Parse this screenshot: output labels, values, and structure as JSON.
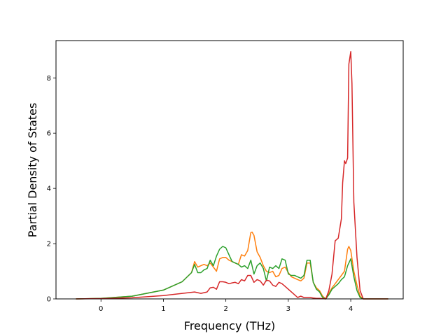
{
  "chart_data": {
    "type": "line",
    "title": "",
    "xlabel": "Frequency (THz)",
    "ylabel": "Partial Density of States",
    "xlim": [
      -0.72,
      4.84
    ],
    "ylim": [
      0,
      9.35
    ],
    "xticks": [
      0,
      1,
      2,
      3,
      4
    ],
    "yticks": [
      0,
      2,
      4,
      6,
      8
    ],
    "grid": false,
    "legend": "none",
    "series": [
      {
        "color": "#ff7f0e",
        "x": [
          -0.4,
          0,
          0.5,
          1.0,
          1.3,
          1.45,
          1.5,
          1.55,
          1.6,
          1.65,
          1.7,
          1.75,
          1.8,
          1.85,
          1.9,
          1.95,
          2.0,
          2.05,
          2.1,
          2.15,
          2.2,
          2.25,
          2.3,
          2.35,
          2.4,
          2.42,
          2.45,
          2.5,
          2.55,
          2.6,
          2.65,
          2.7,
          2.75,
          2.8,
          2.85,
          2.9,
          2.95,
          3.0,
          3.05,
          3.1,
          3.15,
          3.2,
          3.25,
          3.3,
          3.35,
          3.4,
          3.45,
          3.5,
          3.55,
          3.6,
          3.65,
          3.7,
          3.75,
          3.8,
          3.85,
          3.9,
          3.95,
          3.97,
          4.0,
          4.05,
          4.1,
          4.15,
          4.2,
          4.6
        ],
        "y": [
          0,
          0.02,
          0.1,
          0.32,
          0.62,
          0.95,
          1.35,
          1.15,
          1.2,
          1.25,
          1.2,
          1.3,
          1.15,
          1.0,
          1.45,
          1.5,
          1.5,
          1.4,
          1.35,
          1.3,
          1.25,
          1.6,
          1.55,
          1.75,
          2.4,
          2.42,
          2.3,
          1.7,
          1.5,
          1.2,
          1.0,
          0.95,
          1.0,
          0.8,
          0.85,
          1.1,
          1.15,
          0.95,
          0.8,
          0.75,
          0.7,
          0.65,
          0.75,
          1.3,
          1.3,
          0.6,
          0.4,
          0.3,
          0.1,
          0,
          0.2,
          0.4,
          0.55,
          0.7,
          0.85,
          1.0,
          1.8,
          1.9,
          1.75,
          1.0,
          0.5,
          0.1,
          0,
          0
        ]
      },
      {
        "color": "#2ca02c",
        "x": [
          -0.4,
          0,
          0.5,
          1.0,
          1.3,
          1.45,
          1.5,
          1.55,
          1.6,
          1.65,
          1.7,
          1.75,
          1.8,
          1.85,
          1.9,
          1.95,
          2.0,
          2.05,
          2.1,
          2.15,
          2.2,
          2.25,
          2.3,
          2.35,
          2.4,
          2.42,
          2.45,
          2.5,
          2.55,
          2.6,
          2.65,
          2.7,
          2.75,
          2.8,
          2.85,
          2.9,
          2.95,
          3.0,
          3.05,
          3.1,
          3.15,
          3.2,
          3.25,
          3.3,
          3.35,
          3.4,
          3.45,
          3.5,
          3.55,
          3.6,
          3.65,
          3.7,
          3.75,
          3.8,
          3.85,
          3.9,
          3.95,
          3.97,
          4.0,
          4.05,
          4.1,
          4.15,
          4.2,
          4.6
        ],
        "y": [
          0,
          0.02,
          0.1,
          0.32,
          0.62,
          0.95,
          1.25,
          0.95,
          0.95,
          1.05,
          1.1,
          1.4,
          1.2,
          1.55,
          1.8,
          1.9,
          1.85,
          1.6,
          1.35,
          1.3,
          1.25,
          1.15,
          1.2,
          1.1,
          1.4,
          1.2,
          0.9,
          1.2,
          1.3,
          1.1,
          0.65,
          1.15,
          1.1,
          1.2,
          1.1,
          1.45,
          1.4,
          0.9,
          0.85,
          0.85,
          0.8,
          0.75,
          0.85,
          1.4,
          1.4,
          0.6,
          0.35,
          0.25,
          0.05,
          0,
          0.15,
          0.35,
          0.45,
          0.55,
          0.7,
          0.8,
          1.2,
          1.3,
          1.45,
          0.8,
          0.3,
          0.05,
          0,
          0
        ]
      },
      {
        "color": "#d62728",
        "x": [
          -0.4,
          0,
          0.5,
          1.0,
          1.5,
          1.6,
          1.7,
          1.75,
          1.8,
          1.85,
          1.9,
          1.95,
          2.0,
          2.05,
          2.1,
          2.15,
          2.2,
          2.25,
          2.3,
          2.35,
          2.4,
          2.45,
          2.5,
          2.55,
          2.6,
          2.65,
          2.7,
          2.75,
          2.8,
          2.85,
          2.9,
          2.95,
          3.0,
          3.05,
          3.1,
          3.15,
          3.2,
          3.25,
          3.3,
          3.35,
          3.4,
          3.45,
          3.5,
          3.55,
          3.6,
          3.65,
          3.7,
          3.75,
          3.8,
          3.85,
          3.87,
          3.9,
          3.92,
          3.95,
          3.97,
          4.0,
          4.02,
          4.05,
          4.1,
          4.15,
          4.2,
          4.6
        ],
        "y": [
          0,
          0.01,
          0.04,
          0.12,
          0.25,
          0.2,
          0.25,
          0.4,
          0.42,
          0.35,
          0.62,
          0.62,
          0.6,
          0.55,
          0.58,
          0.6,
          0.55,
          0.7,
          0.65,
          0.85,
          0.85,
          0.6,
          0.7,
          0.65,
          0.5,
          0.68,
          0.65,
          0.5,
          0.45,
          0.6,
          0.55,
          0.45,
          0.35,
          0.25,
          0.15,
          0.05,
          0.1,
          0.05,
          0.05,
          0.05,
          0.03,
          0.02,
          0.02,
          0.01,
          0,
          0.3,
          0.9,
          2.1,
          2.2,
          2.9,
          4.2,
          5.0,
          4.9,
          5.1,
          8.5,
          8.95,
          7.8,
          3.5,
          1.5,
          0.3,
          0,
          0
        ]
      }
    ]
  }
}
